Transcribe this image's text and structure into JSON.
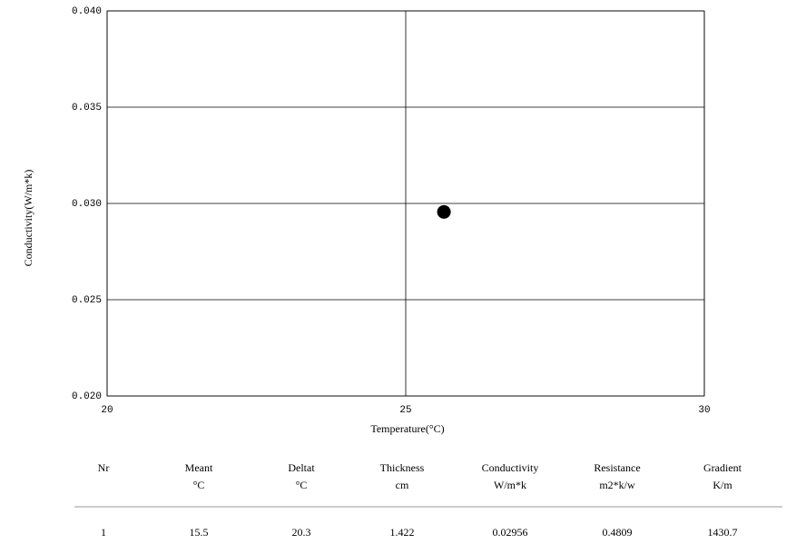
{
  "chart_data": {
    "type": "scatter",
    "x_label": "Temperature(°C)",
    "y_label": "Conductivity(W/m*k)",
    "x": [
      25.64
    ],
    "values": [
      0.02956
    ],
    "color": "#000000",
    "xlim": [
      20,
      30
    ],
    "xticks": [
      20,
      25,
      30
    ],
    "ylim": [
      0.02,
      0.04
    ],
    "yticks": [
      {
        "value": 0.02,
        "label": "0.020"
      },
      0.025,
      {
        "value": 0.03,
        "label": "0.030"
      },
      0.035,
      {
        "value": 0.04,
        "label": "0.040"
      }
    ],
    "grid": true
  },
  "table": {
    "header": [
      [
        "Nr"
      ],
      [
        "Meant",
        "°C"
      ],
      [
        "Deltat",
        "°C"
      ],
      [
        "Thickness",
        "cm"
      ],
      [
        "Conductivity",
        "W/m*k"
      ],
      [
        "Resistance",
        "m2*k/w"
      ],
      [
        "Gradient",
        "K/m"
      ]
    ],
    "rows": [
      [
        "1",
        "15.5",
        "20.3",
        "1.422",
        "0.02956",
        "0.4809",
        "1430.7"
      ]
    ]
  }
}
